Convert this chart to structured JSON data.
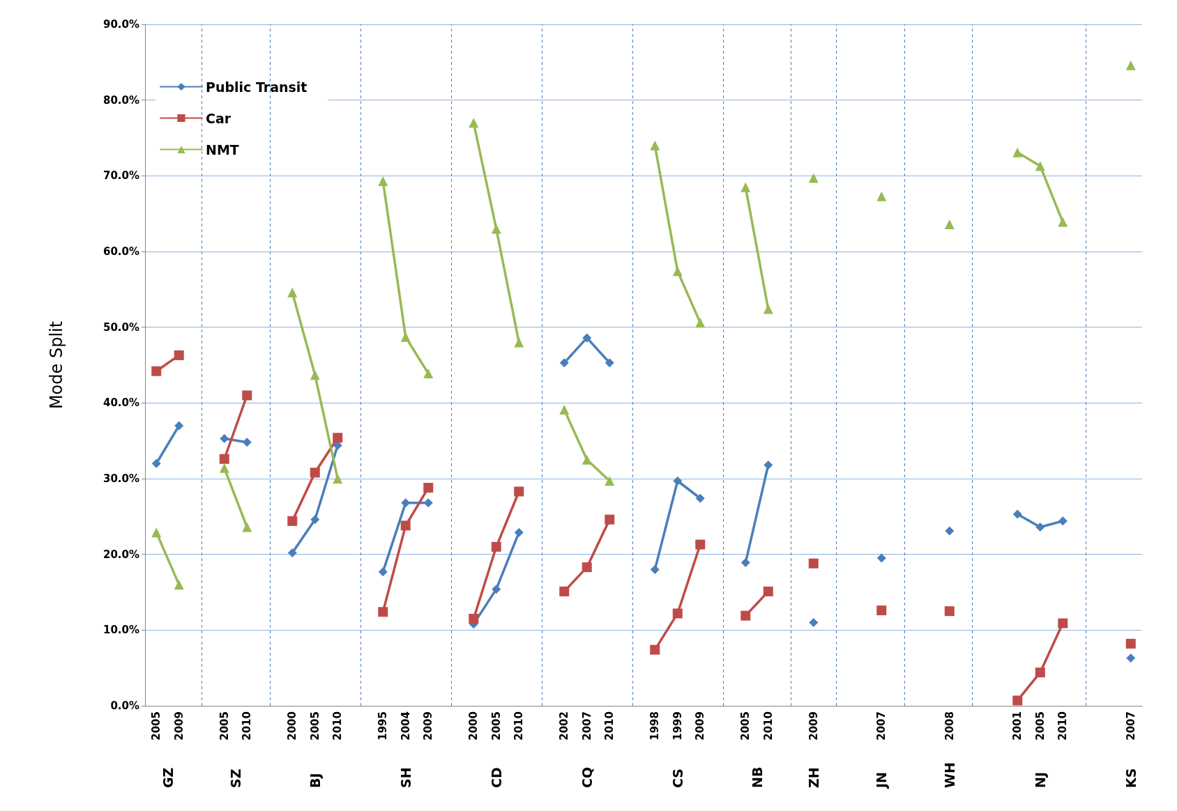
{
  "chart_data": {
    "type": "line",
    "ylabel": "Mode Split",
    "categories": [
      "2005",
      "2009",
      null,
      "2005",
      "2010",
      null,
      "2000",
      "2005",
      "2010",
      null,
      "1995",
      "2004",
      "2009",
      null,
      "2000",
      "2005",
      "2010",
      null,
      "2002",
      "2007",
      "2010",
      null,
      "1998",
      "1999",
      "2009",
      null,
      "2005",
      "2010",
      null,
      "2009",
      null,
      null,
      "2007",
      null,
      null,
      "2008",
      null,
      null,
      "2001",
      "2005",
      "2010",
      null,
      null,
      "2007"
    ],
    "annotations": [
      "GZ",
      "SZ",
      "BJ",
      "SH",
      "CD",
      "CQ",
      "CS",
      "NB",
      "ZH",
      "JN",
      "WH",
      "NJ",
      "KS"
    ],
    "series": [
      {
        "name": "Public Transit",
        "color": "#4a7ebb",
        "marker": "diamond",
        "values": [
          32.0,
          37.0,
          null,
          35.3,
          34.8,
          null,
          20.2,
          24.6,
          34.4,
          null,
          17.7,
          26.8,
          26.8,
          null,
          10.8,
          15.4,
          22.9,
          null,
          45.3,
          48.6,
          45.3,
          null,
          18.0,
          29.7,
          27.4,
          null,
          18.9,
          31.8,
          null,
          11.0,
          null,
          null,
          19.5,
          null,
          null,
          23.1,
          null,
          null,
          25.3,
          23.6,
          24.4,
          null,
          null,
          6.3
        ]
      },
      {
        "name": "Car",
        "color": "#be4b48",
        "marker": "square",
        "values": [
          44.2,
          46.3,
          null,
          32.6,
          41.0,
          null,
          24.4,
          30.8,
          35.4,
          null,
          12.4,
          23.8,
          28.8,
          null,
          11.5,
          21.0,
          28.3,
          null,
          15.1,
          18.3,
          24.6,
          null,
          7.4,
          12.2,
          21.3,
          null,
          11.9,
          15.1,
          null,
          18.8,
          null,
          null,
          12.6,
          null,
          null,
          12.5,
          null,
          null,
          0.7,
          4.4,
          10.9,
          null,
          null,
          8.2
        ]
      },
      {
        "name": "NMT",
        "color": "#98b954",
        "marker": "triangle",
        "values": [
          22.9,
          16.0,
          null,
          31.4,
          23.6,
          null,
          54.6,
          43.7,
          30.0,
          null,
          69.3,
          48.7,
          43.9,
          null,
          77.0,
          63.0,
          48.0,
          null,
          39.1,
          32.5,
          29.7,
          null,
          74.0,
          57.4,
          50.6,
          null,
          68.5,
          52.4,
          null,
          69.7,
          null,
          null,
          67.3,
          null,
          null,
          63.6,
          null,
          null,
          73.1,
          71.3,
          63.9,
          null,
          null,
          84.6
        ]
      }
    ],
    "ylim": [
      0,
      90
    ],
    "yticks": [
      {
        "value": 0,
        "label": "0.0%"
      },
      {
        "value": 10,
        "label": "10.0%"
      },
      {
        "value": 20,
        "label": "20.0%"
      },
      {
        "value": 30,
        "label": "30.0%"
      },
      {
        "value": 40,
        "label": "40.0%"
      },
      {
        "value": 50,
        "label": "50.0%"
      },
      {
        "value": 60,
        "label": "60.0%"
      },
      {
        "value": 70,
        "label": "70.0%"
      },
      {
        "value": 80,
        "label": "80.0%"
      },
      {
        "value": 90,
        "label": "90.0%"
      }
    ],
    "grid": true,
    "legend": "top left"
  }
}
